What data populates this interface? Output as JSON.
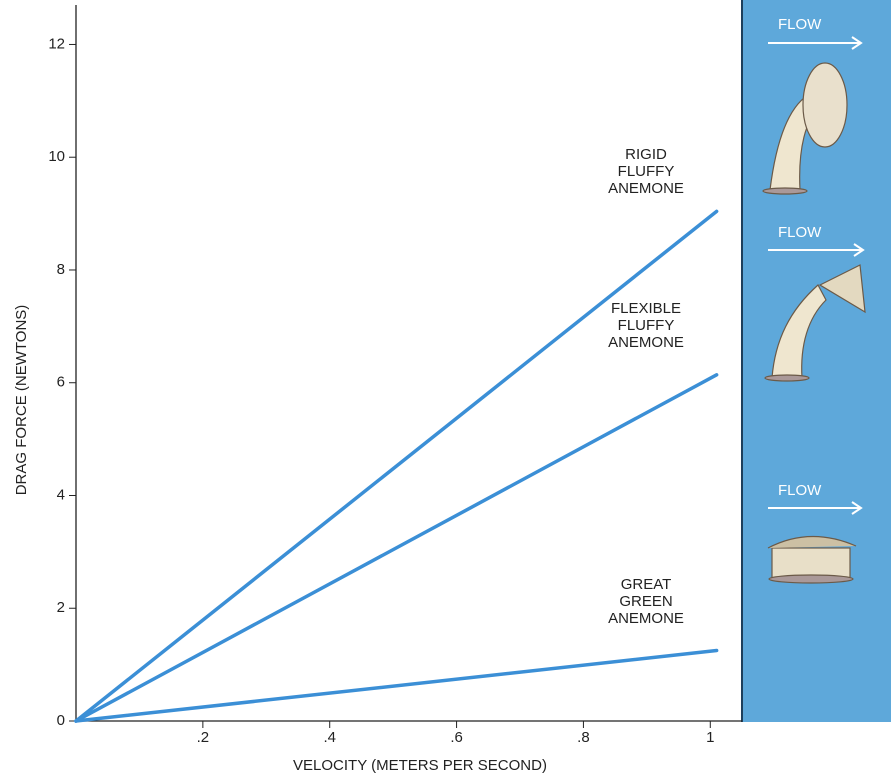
{
  "chart_data": {
    "type": "line",
    "x_label": "VELOCITY (METERS PER SECOND)",
    "y_label": "DRAG FORCE (NEWTONS)",
    "x": [
      0,
      1.01
    ],
    "series": [
      {
        "name": "RIGID FLUFFY ANEMONE",
        "color": "#3b8fd6",
        "values": [
          0,
          9.04
        ]
      },
      {
        "name": "FLEXIBLE FLUFFY ANEMONE",
        "color": "#3b8fd6",
        "values": [
          0,
          6.14
        ]
      },
      {
        "name": "GREAT GREEN ANEMONE",
        "color": "#3b8fd6",
        "values": [
          0,
          1.25
        ]
      }
    ],
    "xlim": [
      0,
      1.05
    ],
    "xticks": [
      {
        "value": 0.2,
        "label": ".2"
      },
      {
        "value": 0.4,
        "label": ".4"
      },
      {
        "value": 0.6,
        "label": ".6"
      },
      {
        "value": 0.8,
        "label": ".8"
      },
      1
    ],
    "ylim": [
      0,
      12.7
    ],
    "yticks": [
      0,
      2,
      4,
      6,
      8,
      10,
      12
    ],
    "annotations": [
      "FLOW",
      "FLOW",
      "FLOW"
    ]
  }
}
